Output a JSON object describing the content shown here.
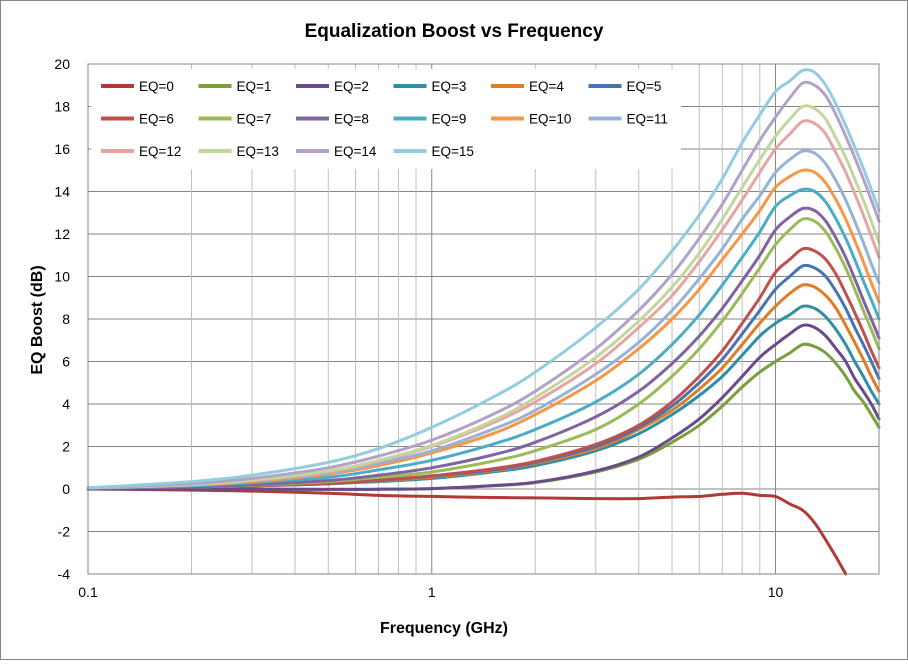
{
  "chart_data": {
    "type": "line",
    "title": "Equalization Boost vs Frequency",
    "xlabel": "Frequency (GHz)",
    "ylabel": "EQ Boost (dB)",
    "xscale": "log",
    "xlim": [
      0.1,
      20
    ],
    "ylim": [
      -4,
      20
    ],
    "x_tick_labels": [
      "0.1",
      "1",
      "10"
    ],
    "y_ticks": [
      -4,
      -2,
      0,
      2,
      4,
      6,
      8,
      10,
      12,
      14,
      16,
      18,
      20
    ],
    "grid": true,
    "legend_position": "top-left inside",
    "x": [
      0.1,
      0.2,
      0.3,
      0.5,
      0.7,
      1,
      1.5,
      2,
      3,
      4,
      5,
      6,
      7,
      8,
      9,
      10,
      11,
      12,
      13,
      14,
      15,
      16,
      17,
      18,
      19,
      20
    ],
    "series": [
      {
        "name": "EQ=0",
        "color": "#B03A36",
        "values": [
          0,
          -0.05,
          -0.1,
          -0.2,
          -0.3,
          -0.35,
          -0.4,
          -0.42,
          -0.45,
          -0.45,
          -0.38,
          -0.35,
          -0.25,
          -0.2,
          -0.3,
          -0.35,
          -0.7,
          -1.0,
          -1.6,
          -2.4,
          -3.2,
          -4.0,
          null,
          null,
          null,
          null
        ]
      },
      {
        "name": "EQ=1",
        "color": "#77A03C",
        "values": [
          0,
          0,
          0,
          -0.02,
          -0.01,
          0.02,
          0.15,
          0.3,
          0.8,
          1.4,
          2.2,
          3.0,
          3.9,
          4.8,
          5.5,
          6.0,
          6.4,
          6.8,
          6.7,
          6.4,
          5.9,
          5.3,
          4.6,
          4.1,
          3.5,
          2.9
        ]
      },
      {
        "name": "EQ=2",
        "color": "#6A4A8A",
        "values": [
          0,
          0,
          0,
          -0.02,
          -0.01,
          0.02,
          0.16,
          0.32,
          0.85,
          1.5,
          2.4,
          3.3,
          4.3,
          5.3,
          6.2,
          6.8,
          7.3,
          7.7,
          7.6,
          7.2,
          6.6,
          6.0,
          5.2,
          4.6,
          4.0,
          3.3
        ]
      },
      {
        "name": "EQ=3",
        "color": "#2E8FA5",
        "values": [
          0.05,
          0.1,
          0.15,
          0.25,
          0.35,
          0.5,
          0.8,
          1.1,
          1.8,
          2.6,
          3.5,
          4.4,
          5.3,
          6.3,
          7.2,
          7.8,
          8.2,
          8.6,
          8.5,
          8.1,
          7.5,
          6.8,
          6.0,
          5.3,
          4.6,
          4.0
        ]
      },
      {
        "name": "EQ=4",
        "color": "#E07B28",
        "values": [
          0.05,
          0.1,
          0.15,
          0.25,
          0.38,
          0.55,
          0.85,
          1.2,
          1.9,
          2.8,
          3.7,
          4.7,
          5.7,
          6.8,
          7.8,
          8.6,
          9.2,
          9.6,
          9.5,
          9.1,
          8.5,
          7.7,
          6.9,
          6.1,
          5.3,
          4.6
        ]
      },
      {
        "name": "EQ=5",
        "color": "#4574B0",
        "values": [
          0.05,
          0.1,
          0.15,
          0.25,
          0.4,
          0.6,
          0.9,
          1.25,
          2.0,
          2.9,
          3.9,
          5.0,
          6.1,
          7.3,
          8.4,
          9.4,
          10.0,
          10.5,
          10.4,
          10.0,
          9.3,
          8.5,
          7.6,
          6.8,
          6.0,
          5.2
        ]
      },
      {
        "name": "EQ=6",
        "color": "#C0504D",
        "values": [
          0.05,
          0.1,
          0.15,
          0.27,
          0.42,
          0.62,
          0.95,
          1.3,
          2.1,
          3.0,
          4.1,
          5.3,
          6.5,
          7.8,
          9.0,
          10.2,
          10.8,
          11.3,
          11.2,
          10.8,
          10.1,
          9.2,
          8.3,
          7.4,
          6.5,
          5.7
        ]
      },
      {
        "name": "EQ=7",
        "color": "#9BBB59",
        "values": [
          0.05,
          0.1,
          0.18,
          0.35,
          0.55,
          0.8,
          1.3,
          1.8,
          2.8,
          4.0,
          5.3,
          6.6,
          7.9,
          9.2,
          10.4,
          11.5,
          12.2,
          12.7,
          12.6,
          12.1,
          11.3,
          10.4,
          9.4,
          8.4,
          7.5,
          6.6
        ]
      },
      {
        "name": "EQ=8",
        "color": "#8064A2",
        "values": [
          0.05,
          0.1,
          0.2,
          0.4,
          0.65,
          1.0,
          1.6,
          2.2,
          3.4,
          4.6,
          5.9,
          7.2,
          8.5,
          9.8,
          11.0,
          12.2,
          12.8,
          13.2,
          13.1,
          12.6,
          11.8,
          10.9,
          9.9,
          8.9,
          8.0,
          7.1
        ]
      },
      {
        "name": "EQ=9",
        "color": "#4BACC6",
        "values": [
          0.05,
          0.15,
          0.3,
          0.55,
          0.9,
          1.35,
          2.1,
          2.8,
          4.1,
          5.4,
          6.8,
          8.2,
          9.6,
          10.9,
          12.1,
          13.3,
          13.8,
          14.1,
          14.0,
          13.5,
          12.7,
          11.8,
          10.8,
          9.8,
          8.9,
          8.0
        ]
      },
      {
        "name": "EQ=10",
        "color": "#F79646",
        "values": [
          0.05,
          0.2,
          0.35,
          0.7,
          1.1,
          1.7,
          2.6,
          3.5,
          5.1,
          6.6,
          8.0,
          9.4,
          10.8,
          12.0,
          13.1,
          14.2,
          14.7,
          15.0,
          14.9,
          14.4,
          13.6,
          12.7,
          11.7,
          10.7,
          9.7,
          8.8
        ]
      },
      {
        "name": "EQ=11",
        "color": "#95B3D7",
        "values": [
          0.05,
          0.2,
          0.4,
          0.75,
          1.2,
          1.8,
          2.8,
          3.7,
          5.4,
          6.9,
          8.4,
          9.9,
          11.3,
          12.7,
          13.8,
          14.9,
          15.5,
          15.9,
          15.8,
          15.3,
          14.5,
          13.6,
          12.6,
          11.6,
          10.6,
          9.7
        ]
      },
      {
        "name": "EQ=12",
        "color": "#E6A5A3",
        "values": [
          0.05,
          0.2,
          0.4,
          0.8,
          1.3,
          2.0,
          3.1,
          4.1,
          5.9,
          7.6,
          9.1,
          10.7,
          12.2,
          13.6,
          14.9,
          16.0,
          16.7,
          17.3,
          17.2,
          16.7,
          15.8,
          14.9,
          13.9,
          12.9,
          11.9,
          10.9
        ]
      },
      {
        "name": "EQ=13",
        "color": "#C3D69B",
        "values": [
          0.05,
          0.2,
          0.42,
          0.85,
          1.35,
          2.05,
          3.2,
          4.3,
          6.2,
          7.9,
          9.5,
          11.1,
          12.7,
          14.2,
          15.5,
          16.6,
          17.4,
          18.0,
          17.9,
          17.4,
          16.5,
          15.6,
          14.6,
          13.6,
          12.6,
          11.6
        ]
      },
      {
        "name": "EQ=14",
        "color": "#B3A2C7",
        "values": [
          0.05,
          0.25,
          0.5,
          1.0,
          1.55,
          2.3,
          3.5,
          4.6,
          6.6,
          8.4,
          10.1,
          11.8,
          13.4,
          15.0,
          16.4,
          17.5,
          18.4,
          19.1,
          19.0,
          18.5,
          17.6,
          16.6,
          15.6,
          14.6,
          13.6,
          12.6
        ]
      },
      {
        "name": "EQ=15",
        "color": "#93CDDD",
        "values": [
          0.05,
          0.35,
          0.65,
          1.25,
          1.9,
          2.9,
          4.3,
          5.5,
          7.6,
          9.4,
          11.2,
          12.9,
          14.6,
          16.3,
          17.6,
          18.7,
          19.2,
          19.7,
          19.6,
          19.0,
          18.1,
          17.1,
          16.1,
          15.1,
          14.1,
          13.1
        ]
      }
    ]
  }
}
